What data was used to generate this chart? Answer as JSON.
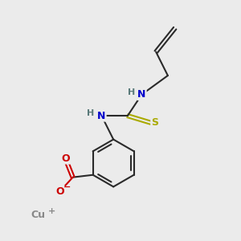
{
  "background_color": "#ebebeb",
  "bond_color": "#2a2a2a",
  "atom_colors": {
    "N": "#0000cc",
    "O": "#cc0000",
    "S": "#aaaa00",
    "Cu": "#888888",
    "H_label": "#5a7a7a"
  },
  "figsize": [
    3.0,
    3.0
  ],
  "dpi": 100
}
